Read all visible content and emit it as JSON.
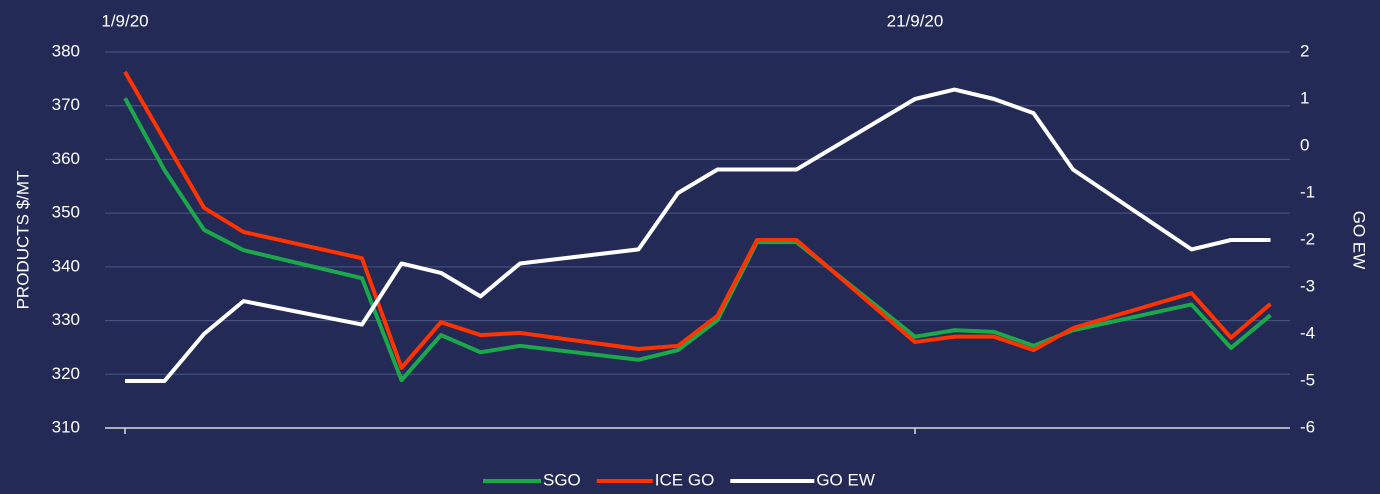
{
  "chart_data": {
    "type": "line",
    "x": [
      "2020-09-01",
      "2020-09-02",
      "2020-09-03",
      "2020-09-04",
      "2020-09-07",
      "2020-09-08",
      "2020-09-09",
      "2020-09-10",
      "2020-09-11",
      "2020-09-14",
      "2020-09-15",
      "2020-09-16",
      "2020-09-17",
      "2020-09-18",
      "2020-09-21",
      "2020-09-22",
      "2020-09-23",
      "2020-09-24",
      "2020-09-25",
      "2020-09-28",
      "2020-09-29",
      "2020-09-30"
    ],
    "xlim": [
      "2020-08-31",
      "2020-10-01"
    ],
    "xticks": [
      {
        "value": "2020-09-01",
        "label": "1/9/20"
      },
      {
        "value": "2020-09-21",
        "label": "21/9/20"
      }
    ],
    "ylabel": "PRODUCTS $/MT",
    "ylim": [
      310,
      380
    ],
    "yticks": [
      310,
      320,
      330,
      340,
      350,
      360,
      370,
      380
    ],
    "y2label": "GO EW",
    "y2lim": [
      -6,
      2
    ],
    "y2ticks": [
      -6,
      -5,
      -4,
      -3,
      -2,
      -1,
      0,
      1,
      2
    ],
    "grid": true,
    "legend": "bottom",
    "series": [
      {
        "name": "SGO",
        "color": "#1aa84a",
        "values": [
          371.4,
          358,
          346.9,
          343.1,
          337.9,
          318.9,
          327.3,
          324.1,
          325.3,
          322.7,
          324.5,
          330.1,
          344.6,
          344.6,
          327,
          328.2,
          327.9,
          325.3,
          328.2,
          333,
          324.9,
          331
        ]
      },
      {
        "name": "ICE GO",
        "color": "#ff3300",
        "values": [
          376.3,
          363.6,
          351,
          346.5,
          341.6,
          321.2,
          329.7,
          327.3,
          327.7,
          324.7,
          325.3,
          330.9,
          345,
          345,
          326,
          327,
          327,
          324.5,
          328.6,
          335.1,
          326.8,
          333.1
        ]
      },
      {
        "name": "GO EW",
        "color": "#ffffff",
        "axis": "y2",
        "values": [
          -5,
          -5,
          -4,
          -3.3,
          -3.8,
          -2.5,
          -2.7,
          -3.2,
          -2.5,
          -2.2,
          -1,
          -0.5,
          -0.5,
          -0.5,
          1,
          1.2,
          1,
          0.7,
          -0.5,
          -2.2,
          -2,
          -2
        ]
      }
    ]
  }
}
